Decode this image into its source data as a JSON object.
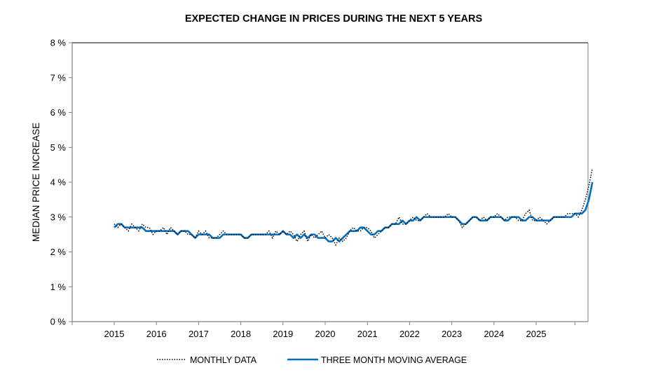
{
  "chart_data": {
    "type": "line",
    "title": "EXPECTED CHANGE IN PRICES DURING THE NEXT 5 YEARS",
    "xlabel": "",
    "ylabel": "MEDIAN PRICE INCREASE",
    "ylim": [
      0,
      8
    ],
    "yticks": [
      0,
      1,
      2,
      3,
      4,
      5,
      6,
      7,
      8
    ],
    "ytick_labels": [
      "0 %",
      "1 %",
      "2 %",
      "3 %",
      "4 %",
      "5 %",
      "6 %",
      "7 %",
      "8 %"
    ],
    "xlim": [
      2014,
      2026
    ],
    "xticks": [
      2015,
      2016,
      2017,
      2018,
      2019,
      2020,
      2021,
      2022,
      2023,
      2024,
      2025
    ],
    "xtick_labels": [
      "2015",
      "2016",
      "2017",
      "2018",
      "2019",
      "2020",
      "2021",
      "2022",
      "2023",
      "2024",
      "2025"
    ],
    "grid": false,
    "legend_position": "bottom-center",
    "x_start": 2015.0,
    "x_step_months": 1,
    "series": [
      {
        "name": "MONTHLY DATA",
        "style": "dotted",
        "color": "#000000",
        "values": [
          2.8,
          2.7,
          2.8,
          2.7,
          2.6,
          2.8,
          2.7,
          2.6,
          2.8,
          2.7,
          2.7,
          2.5,
          2.6,
          2.6,
          2.7,
          2.5,
          2.7,
          2.6,
          2.5,
          2.6,
          2.6,
          2.5,
          2.5,
          2.4,
          2.6,
          2.5,
          2.6,
          2.4,
          2.4,
          2.4,
          2.5,
          2.6,
          2.5,
          2.5,
          2.5,
          2.5,
          2.5,
          2.4,
          2.4,
          2.5,
          2.5,
          2.5,
          2.5,
          2.5,
          2.6,
          2.4,
          2.6,
          2.5,
          2.6,
          2.5,
          2.6,
          2.5,
          2.3,
          2.5,
          2.6,
          2.3,
          2.5,
          2.4,
          2.5,
          2.6,
          2.4,
          2.5,
          2.4,
          2.2,
          2.4,
          2.3,
          2.4,
          2.6,
          2.7,
          2.6,
          2.6,
          2.7,
          2.7,
          2.6,
          2.4,
          2.5,
          2.6,
          2.7,
          2.7,
          2.8,
          2.8,
          3.0,
          2.8,
          2.8,
          2.9,
          3.0,
          2.9,
          2.9,
          3.0,
          3.1,
          3.0,
          3.0,
          3.0,
          3.0,
          3.0,
          3.1,
          3.0,
          3.0,
          2.9,
          2.7,
          2.8,
          2.9,
          3.0,
          3.0,
          2.9,
          3.0,
          2.9,
          3.0,
          3.0,
          3.1,
          3.0,
          2.9,
          3.0,
          3.0,
          3.0,
          2.9,
          2.9,
          3.1,
          3.2,
          2.9,
          2.9,
          3.0,
          2.9,
          2.8,
          2.9,
          3.0,
          3.0,
          3.0,
          3.0,
          3.1,
          3.1,
          3.1,
          3.0,
          3.2,
          3.5,
          3.9,
          4.4
        ]
      },
      {
        "name": "THREE MONTH MOVING AVERAGE",
        "style": "solid",
        "color": "#0070C0",
        "values": [
          2.7,
          2.8,
          2.8,
          2.7,
          2.7,
          2.7,
          2.7,
          2.7,
          2.7,
          2.6,
          2.6,
          2.6,
          2.6,
          2.6,
          2.6,
          2.6,
          2.6,
          2.6,
          2.5,
          2.6,
          2.6,
          2.6,
          2.5,
          2.4,
          2.5,
          2.5,
          2.5,
          2.5,
          2.4,
          2.4,
          2.4,
          2.5,
          2.5,
          2.5,
          2.5,
          2.5,
          2.5,
          2.4,
          2.4,
          2.5,
          2.5,
          2.5,
          2.5,
          2.5,
          2.5,
          2.5,
          2.5,
          2.5,
          2.6,
          2.5,
          2.5,
          2.4,
          2.5,
          2.4,
          2.5,
          2.4,
          2.5,
          2.5,
          2.4,
          2.4,
          2.4,
          2.3,
          2.3,
          2.4,
          2.3,
          2.4,
          2.5,
          2.6,
          2.6,
          2.6,
          2.7,
          2.7,
          2.6,
          2.5,
          2.5,
          2.6,
          2.6,
          2.7,
          2.7,
          2.8,
          2.8,
          2.8,
          2.9,
          2.8,
          2.9,
          2.9,
          3.0,
          2.9,
          3.0,
          3.0,
          3.0,
          3.0,
          3.0,
          3.0,
          3.0,
          3.0,
          3.0,
          3.0,
          2.9,
          2.8,
          2.8,
          2.9,
          3.0,
          3.0,
          2.9,
          2.9,
          2.9,
          3.0,
          3.0,
          3.0,
          3.0,
          2.9,
          2.9,
          3.0,
          3.0,
          3.0,
          2.9,
          2.9,
          3.0,
          3.0,
          2.9,
          2.9,
          2.9,
          2.9,
          2.9,
          3.0,
          3.0,
          3.0,
          3.0,
          3.0,
          3.0,
          3.1,
          3.1,
          3.1,
          3.2,
          3.5,
          4.0
        ]
      }
    ]
  }
}
